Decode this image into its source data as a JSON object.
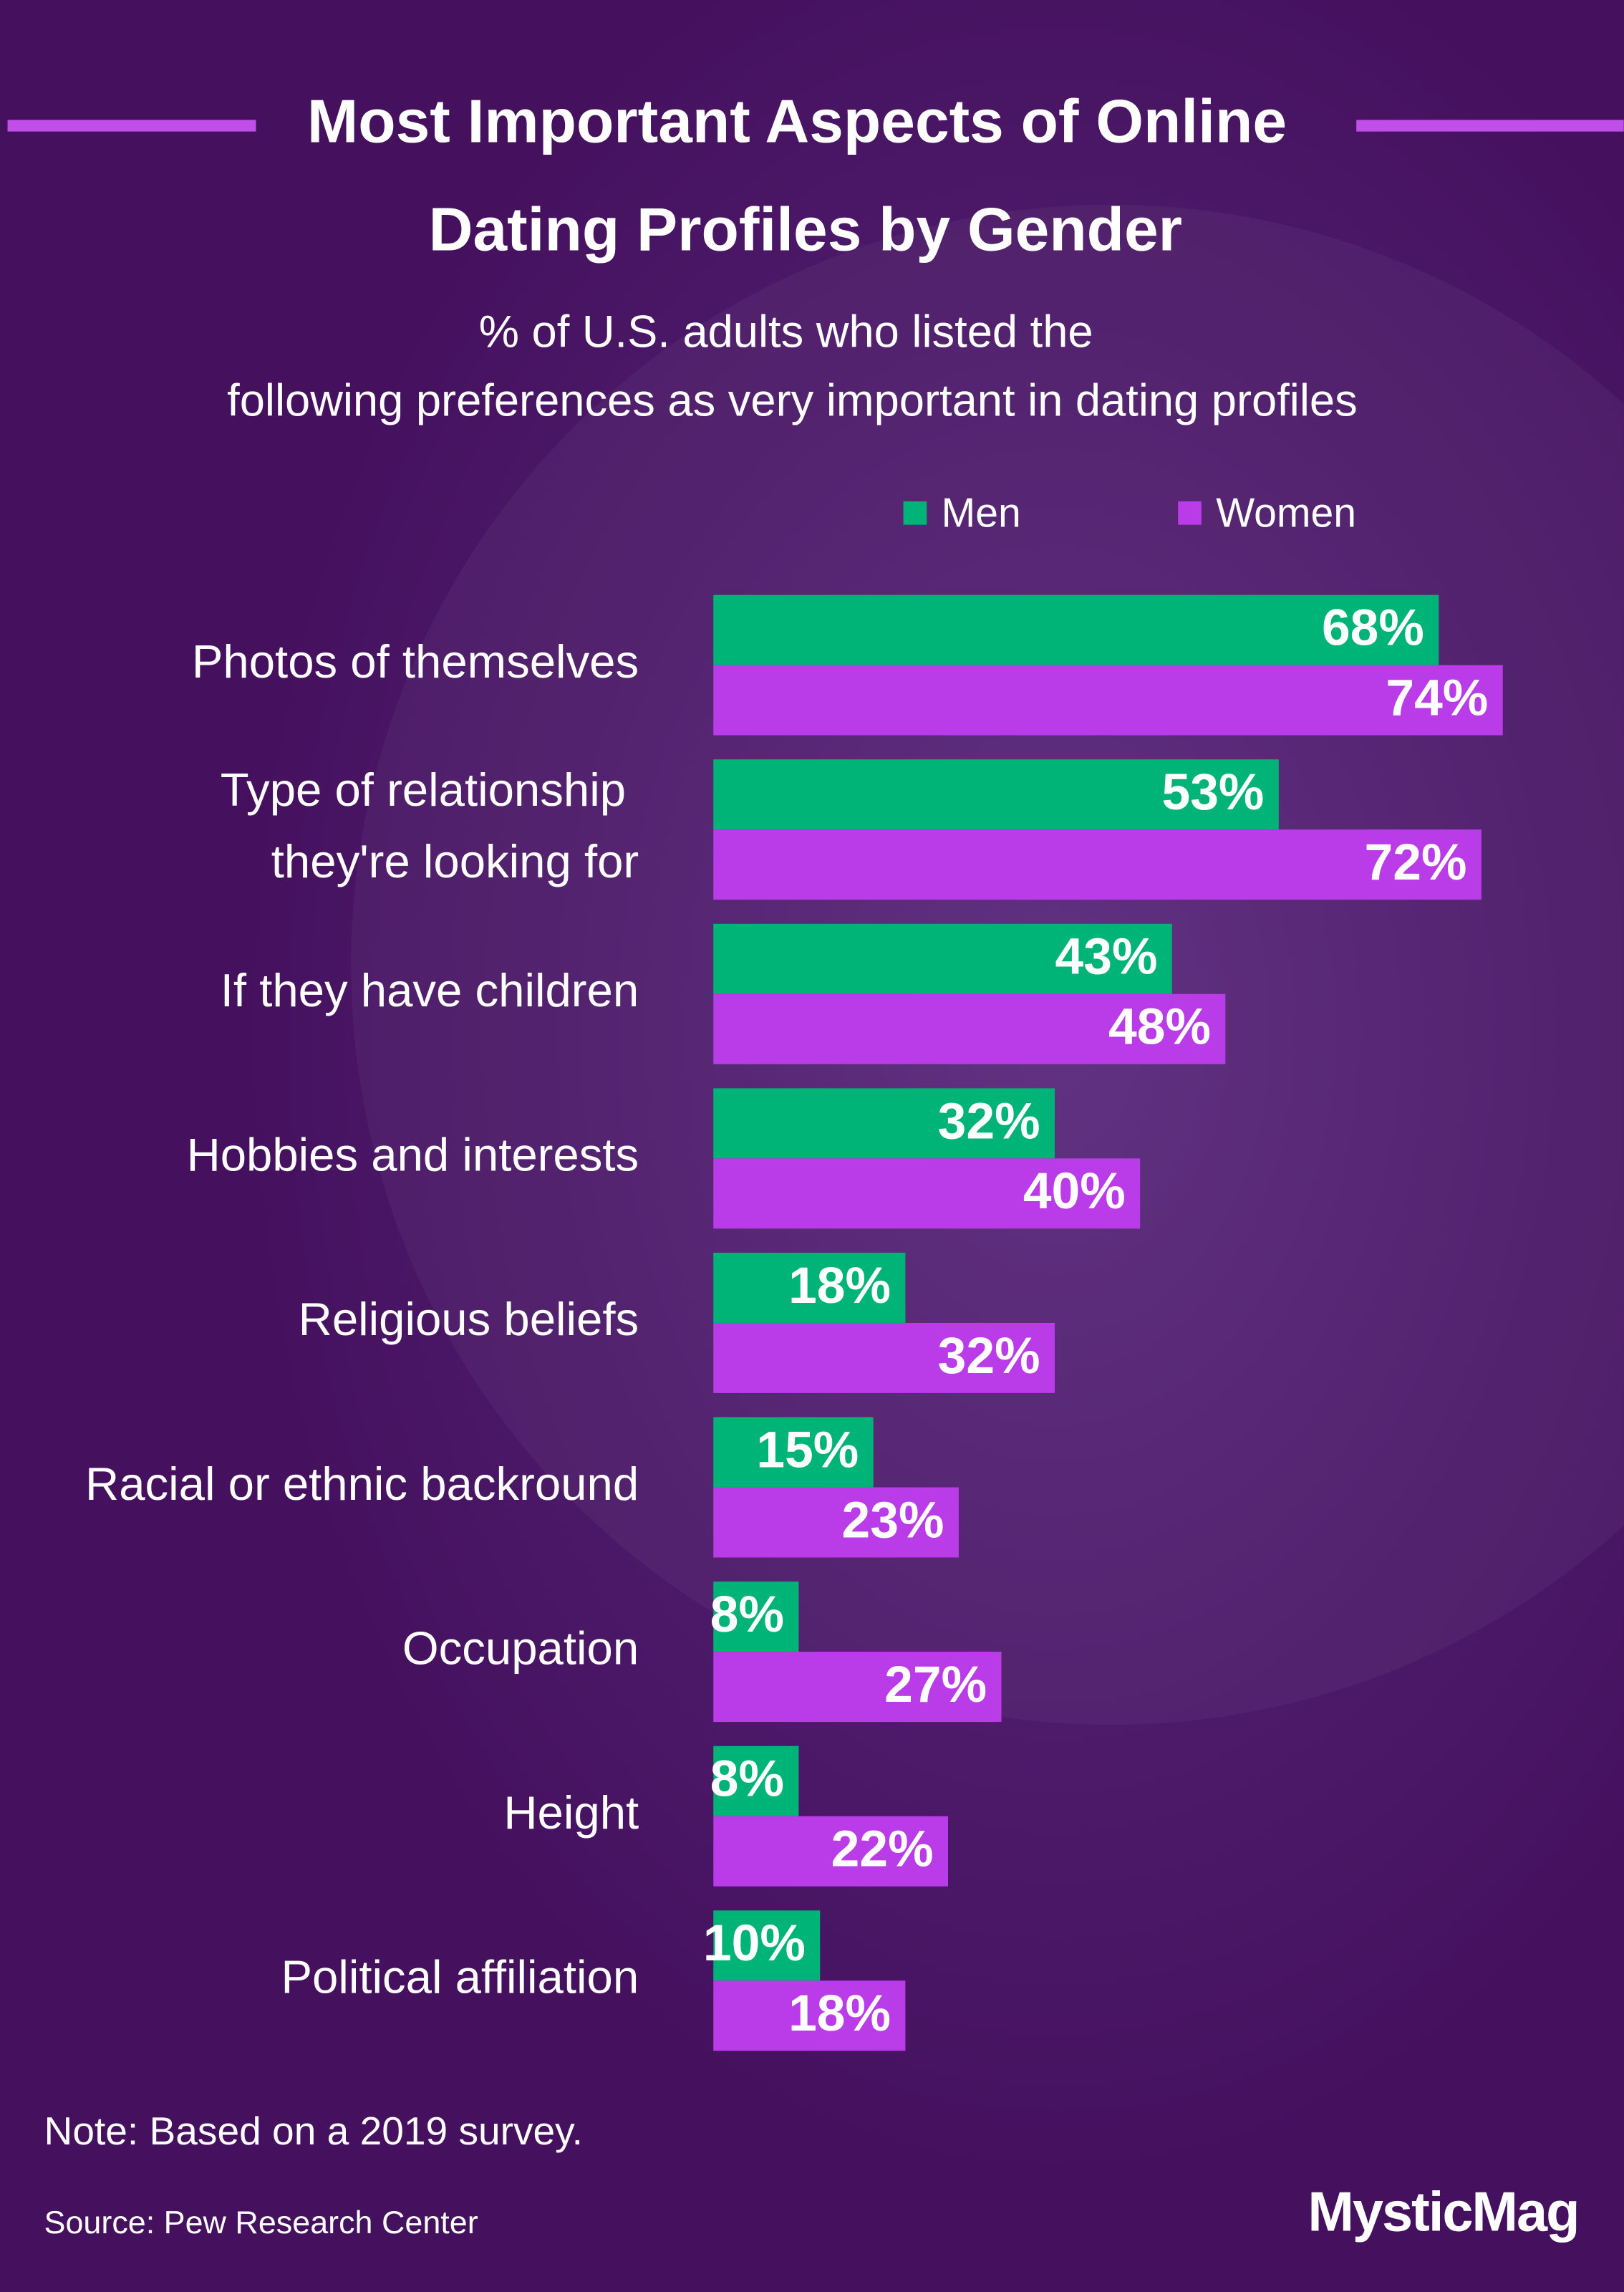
{
  "chart_data": {
    "type": "hbar",
    "title": "Most Important Aspects of Online Dating Profiles by Gender",
    "subtitle": "% of U.S. adults who listed the following preferences as very important in dating profiles",
    "categories": [
      "Photos of themselves",
      "Type of relationship they're looking for",
      "If they have children",
      "Hobbies and interests",
      "Religious beliefs",
      "Racial or ethnic backround",
      "Occupation",
      "Height",
      "Political affiliation"
    ],
    "series": [
      {
        "name": "Men",
        "color": "#00b377",
        "values": [
          68,
          53,
          43,
          32,
          18,
          15,
          8,
          8,
          10
        ],
        "value_labels": [
          "68%",
          "53%",
          "43%",
          "32%",
          "18%",
          "15%",
          "8%",
          "8%",
          "10%"
        ]
      },
      {
        "name": "Women",
        "color": "#b93ce8",
        "values": [
          74,
          72,
          48,
          40,
          32,
          23,
          27,
          22,
          18
        ],
        "value_labels": [
          "74%",
          "72%",
          "48%",
          "40%",
          "32%",
          "23%",
          "27%",
          "22%",
          "18%"
        ]
      }
    ],
    "xlim": [
      0,
      100
    ],
    "legend": "top-right",
    "note": "Note: Based on a 2019 survey.",
    "source": "Source: Pew Research Center",
    "brand": "MysticMag"
  }
}
